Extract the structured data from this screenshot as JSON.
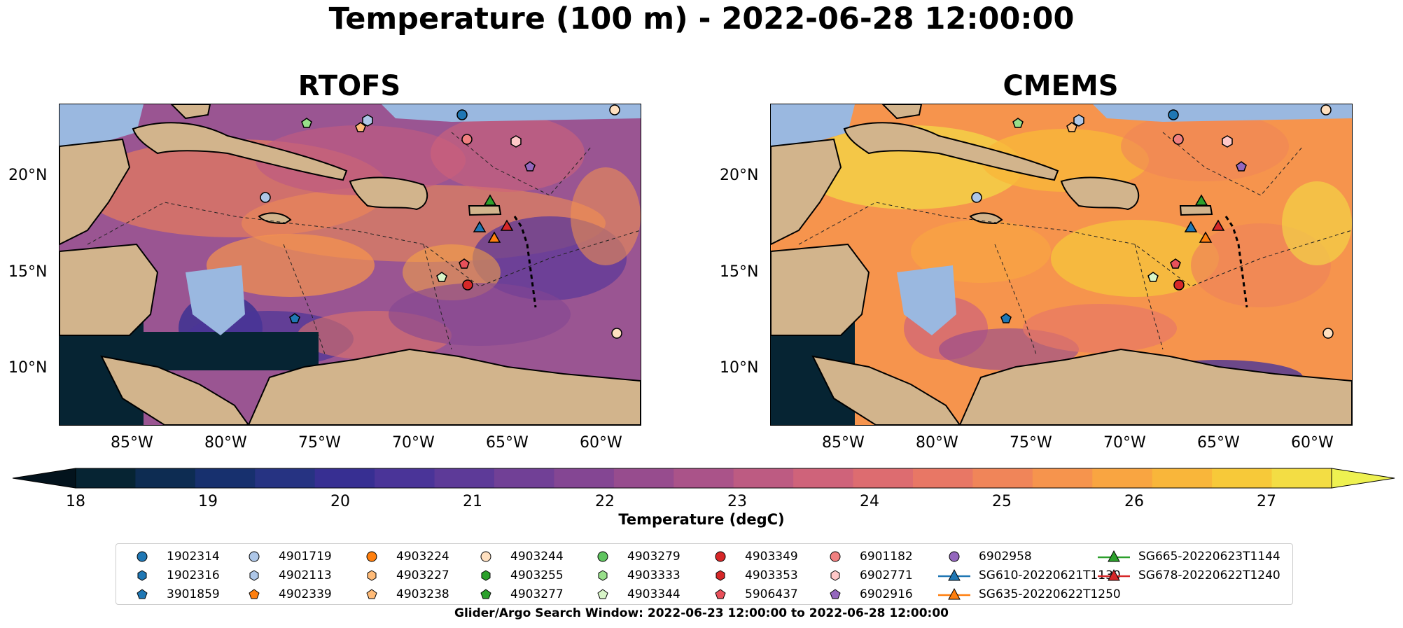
{
  "suptitle": "Temperature (100 m) - 2022-06-28 12:00:00",
  "panels": [
    {
      "title": "RTOFS",
      "palette": "rtofs"
    },
    {
      "title": "CMEMS",
      "palette": "cmems"
    }
  ],
  "y_ticks": [
    "20°N",
    "15°N",
    "10°N"
  ],
  "x_ticks": [
    "85°W",
    "80°W",
    "75°W",
    "70°W",
    "65°W",
    "60°W"
  ],
  "colorbar": {
    "title": "Temperature (degC)",
    "ticks": [
      "18",
      "19",
      "20",
      "21",
      "22",
      "23",
      "24",
      "25",
      "26",
      "27"
    ],
    "colors": [
      "#062433",
      "#0d2c52",
      "#17306e",
      "#263382",
      "#372f92",
      "#4a3498",
      "#5d3a98",
      "#714096",
      "#844693",
      "#974c8e",
      "#aa5389",
      "#bd5b82",
      "#cf637a",
      "#dd6c70",
      "#e87765",
      "#f08559",
      "#f6944d",
      "#f9a541",
      "#f9b63a",
      "#f7c939",
      "#f3dd44"
    ],
    "under_color": "#03131d",
    "over_color": "#eef151"
  },
  "legend": [
    {
      "label": "1902314",
      "color": "#1f77b4",
      "marker": "circle"
    },
    {
      "label": "1902316",
      "color": "#1f77b4",
      "marker": "hexagon"
    },
    {
      "label": "3901859",
      "color": "#1f77b4",
      "marker": "pentagon"
    },
    {
      "label": "4901719",
      "color": "#aec7e8",
      "marker": "circle"
    },
    {
      "label": "4902113",
      "color": "#aec7e8",
      "marker": "hexagon"
    },
    {
      "label": "4902339",
      "color": "#ff7f0e",
      "marker": "pentagon"
    },
    {
      "label": "4903224",
      "color": "#ff7f0e",
      "marker": "circle"
    },
    {
      "label": "4903227",
      "color": "#ffbb78",
      "marker": "hexagon"
    },
    {
      "label": "4903238",
      "color": "#ffbb78",
      "marker": "pentagon"
    },
    {
      "label": "4903244",
      "color": "#ffe0c0",
      "marker": "circle"
    },
    {
      "label": "4903255",
      "color": "#2ca02c",
      "marker": "hexagon"
    },
    {
      "label": "4903277",
      "color": "#2ca02c",
      "marker": "pentagon"
    },
    {
      "label": "4903279",
      "color": "#5fc45f",
      "marker": "circle"
    },
    {
      "label": "4903333",
      "color": "#98df8a",
      "marker": "hexagon"
    },
    {
      "label": "4903344",
      "color": "#d8f5c8",
      "marker": "pentagon"
    },
    {
      "label": "4903349",
      "color": "#d62728",
      "marker": "circle"
    },
    {
      "label": "4903353",
      "color": "#d62728",
      "marker": "hexagon"
    },
    {
      "label": "5906437",
      "color": "#e8505a",
      "marker": "pentagon"
    },
    {
      "label": "6901182",
      "color": "#f08080",
      "marker": "circle"
    },
    {
      "label": "6902771",
      "color": "#ffc8c8",
      "marker": "hexagon"
    },
    {
      "label": "6902916",
      "color": "#9467bd",
      "marker": "pentagon"
    },
    {
      "label": "6902958",
      "color": "#9467bd",
      "marker": "circle"
    },
    {
      "label": "SG610-20220621T1130",
      "color": "#1f77b4",
      "marker": "triangle-line"
    },
    {
      "label": "SG635-20220622T1250",
      "color": "#ff7f0e",
      "marker": "triangle-line"
    },
    {
      "label": "SG665-20220623T1144",
      "color": "#2ca02c",
      "marker": "triangle-line"
    },
    {
      "label": "SG678-20220622T1240",
      "color": "#d62728",
      "marker": "triangle-line"
    }
  ],
  "footer": "Glider/Argo Search Window: 2022-06-23 12:00:00 to 2022-06-28 12:00:00"
}
